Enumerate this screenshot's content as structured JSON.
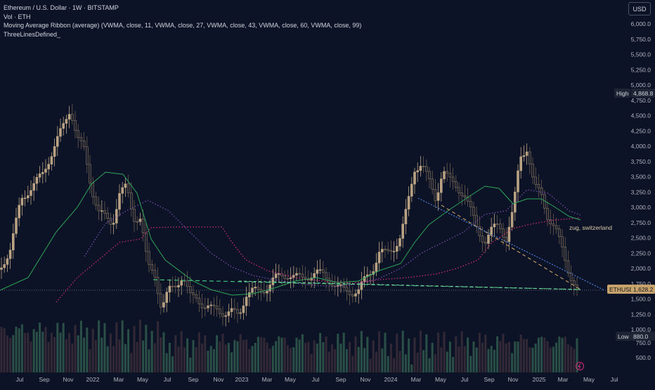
{
  "legend": {
    "title": "Ethereum / U.S. Dollar · 1W · BITSTAMP",
    "vol": "Vol · ETH",
    "ribbon": "Moving Average Ribbon (average) (VWMA, close, 11, VWMA, close, 27, VWMA, close, 43, VWMA, close, 60, VWMA, close, 99)",
    "lines": "ThreeLinesDefined_"
  },
  "currency_button": "USD",
  "price_axis": {
    "ticks": [
      "6,000.0",
      "5,750.0",
      "5,500.0",
      "5,250.0",
      "5,000.0",
      "4,750.0",
      "4,500.0",
      "4,250.0",
      "4,000.0",
      "3,750.0",
      "3,500.0",
      "3,250.0",
      "3,000.0",
      "2,750.0",
      "2,500.0",
      "2,250.0",
      "2,000.0",
      "1,750.0",
      "1,500.0",
      "1,250.0",
      "1,000.0",
      "750.0",
      "500.0"
    ]
  },
  "time_axis": {
    "ticks": [
      "Jul",
      "Sep",
      "Nov",
      "2022",
      "Mar",
      "May",
      "Jul",
      "Sep",
      "Nov",
      "2023",
      "Mar",
      "May",
      "Jul",
      "Sep",
      "Nov",
      "2024",
      "Mar",
      "May",
      "Jul",
      "Sep",
      "Nov",
      "2025",
      "Mar",
      "May",
      "Jul"
    ]
  },
  "markers": {
    "high_label": "High",
    "high_value": "4,868.8",
    "low_label": "Low",
    "low_value": "880.0",
    "symbol": "ETHUSD",
    "last_price": "1,628.2"
  },
  "annotation": "zug, switzerland",
  "colors": {
    "background": "#0d1326",
    "candle": "#8c7a62",
    "ma_fast": "#2ea65a",
    "ma_mid": "#7a4fb0",
    "ma_slow": "#d0307a",
    "trend_dashed": "#c8a26b",
    "trend_blue": "#4a7fd6",
    "support_green": "#3fbf7a",
    "last_price": "#c8a26b"
  }
}
